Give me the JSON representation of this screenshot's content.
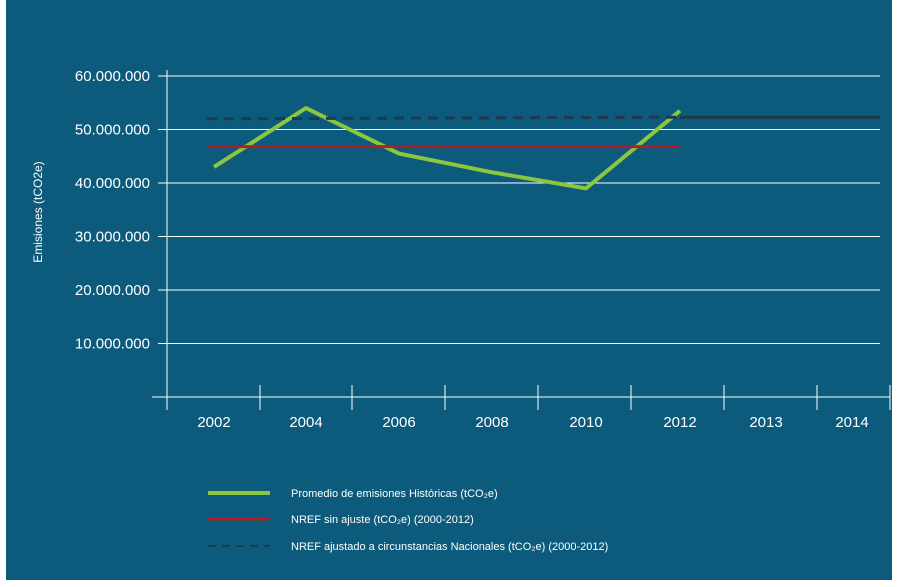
{
  "colors": {
    "background": "#0d5b7c",
    "grid": "#ffffff",
    "historical": "#8cc63f",
    "nref_sin_ajuste": "#b01e23",
    "nref_ajustado": "#1e3a4c"
  },
  "chart_data": {
    "type": "line",
    "ylabel": "Emisiones (tCO2e)",
    "xlabel": "",
    "title": "",
    "categories": [
      "2002",
      "2004",
      "2006",
      "2008",
      "2010",
      "2012",
      "2013",
      "2014"
    ],
    "y_ticks": [
      "10.000.000",
      "20.000.000",
      "30.000.000",
      "40.000.000",
      "50.000.000",
      "60.000.000"
    ],
    "ylim": [
      0,
      60000000
    ],
    "grid": true,
    "legend_position": "bottom",
    "series": [
      {
        "key": "historical",
        "name": "Promedio de emisiones Históricas (tCO₂e)",
        "style": "solid",
        "x": [
          2002,
          2004,
          2006,
          2008,
          2010,
          2012
        ],
        "values": [
          43000000,
          54000000,
          45500000,
          42000000,
          39000000,
          53500000
        ]
      },
      {
        "key": "nref_sin_ajuste",
        "name": "NREF sin ajuste (tCO₂e) (2000-2012)",
        "style": "solid",
        "x": [
          2002,
          2012
        ],
        "values": [
          46800000,
          46800000
        ]
      },
      {
        "key": "nref_ajustado",
        "name": "NREF ajustado a circunstancias Nacionales (tCO₂e) (2000-2012)",
        "style": "dashed-then-solid",
        "x": [
          2002,
          2012,
          2014
        ],
        "values": [
          52000000,
          52300000,
          52300000
        ]
      }
    ]
  }
}
